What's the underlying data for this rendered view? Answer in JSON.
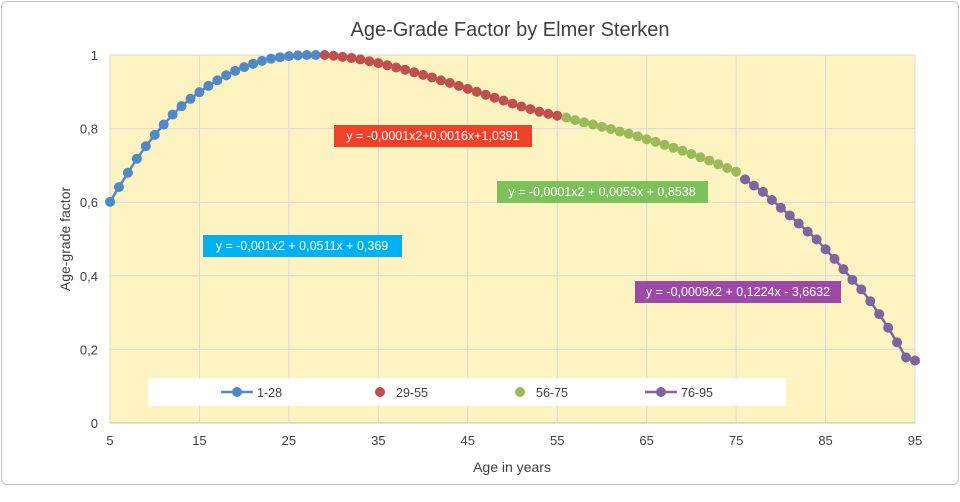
{
  "chart_data": {
    "type": "scatter",
    "title": "Age-Grade Factor by Elmer Sterken",
    "xlabel": "Age in years",
    "ylabel": "Age-grade factor",
    "xlim": [
      5,
      95
    ],
    "ylim": [
      0,
      1
    ],
    "x_ticks": [
      "5",
      "15",
      "25",
      "35",
      "45",
      "55",
      "65",
      "75",
      "85",
      "95"
    ],
    "y_ticks": [
      "0",
      "0,2",
      "0,4",
      "0,6",
      "0,8",
      "1"
    ],
    "grid": true,
    "plot_background": "#fcf3c1",
    "legend": {
      "position": "bottom"
    },
    "series": [
      {
        "name": "1-28",
        "color": "#4f89c6",
        "connected": true,
        "equation": "y = -0,001x2 + 0,0511x + 0,369",
        "equation_color": "#00b0f0",
        "x": [
          5,
          6,
          7,
          8,
          9,
          10,
          11,
          12,
          13,
          14,
          15,
          16,
          17,
          18,
          19,
          20,
          21,
          22,
          23,
          24,
          25,
          26,
          27,
          28
        ],
        "y": [
          0.601,
          0.641,
          0.68,
          0.718,
          0.752,
          0.783,
          0.811,
          0.838,
          0.861,
          0.881,
          0.899,
          0.916,
          0.931,
          0.945,
          0.957,
          0.967,
          0.976,
          0.984,
          0.99,
          0.994,
          0.997,
          0.999,
          1.0,
          1.0
        ]
      },
      {
        "name": "29-55",
        "color": "#c0504d",
        "connected": false,
        "equation": "y = -0,0001x2+0,0016x+1,0391",
        "equation_color": "#f0412b",
        "x": [
          29,
          30,
          31,
          32,
          33,
          34,
          35,
          36,
          37,
          38,
          39,
          40,
          41,
          42,
          43,
          44,
          45,
          46,
          47,
          48,
          49,
          50,
          51,
          52,
          53,
          54,
          55
        ],
        "y": [
          1.0,
          0.998,
          0.995,
          0.992,
          0.988,
          0.983,
          0.978,
          0.972,
          0.966,
          0.96,
          0.953,
          0.946,
          0.939,
          0.931,
          0.924,
          0.916,
          0.908,
          0.9,
          0.892,
          0.884,
          0.876,
          0.868,
          0.86,
          0.853,
          0.846,
          0.84,
          0.835
        ]
      },
      {
        "name": "56-75",
        "color": "#9bbb59",
        "connected": false,
        "equation": "y = -0,0001x2 + 0,0053x + 0,8538",
        "equation_color": "#7cc15a",
        "x": [
          56,
          57,
          58,
          59,
          60,
          61,
          62,
          63,
          64,
          65,
          66,
          67,
          68,
          69,
          70,
          71,
          72,
          73,
          74,
          75
        ],
        "y": [
          0.83,
          0.823,
          0.817,
          0.811,
          0.805,
          0.799,
          0.792,
          0.786,
          0.779,
          0.771,
          0.764,
          0.756,
          0.748,
          0.74,
          0.731,
          0.722,
          0.713,
          0.703,
          0.693,
          0.683
        ]
      },
      {
        "name": "76-95",
        "color": "#8064a2",
        "connected": true,
        "equation": "y = -0,0009x2 + 0,1224x - 3,6632",
        "equation_color": "#9e49a8",
        "x": [
          76,
          77,
          78,
          79,
          80,
          81,
          82,
          83,
          84,
          85,
          86,
          87,
          88,
          89,
          90,
          91,
          92,
          93,
          94,
          95
        ],
        "y": [
          0.662,
          0.645,
          0.628,
          0.606,
          0.585,
          0.564,
          0.542,
          0.52,
          0.499,
          0.472,
          0.446,
          0.418,
          0.389,
          0.363,
          0.331,
          0.296,
          0.259,
          0.219,
          0.178,
          0.17
        ]
      }
    ]
  }
}
